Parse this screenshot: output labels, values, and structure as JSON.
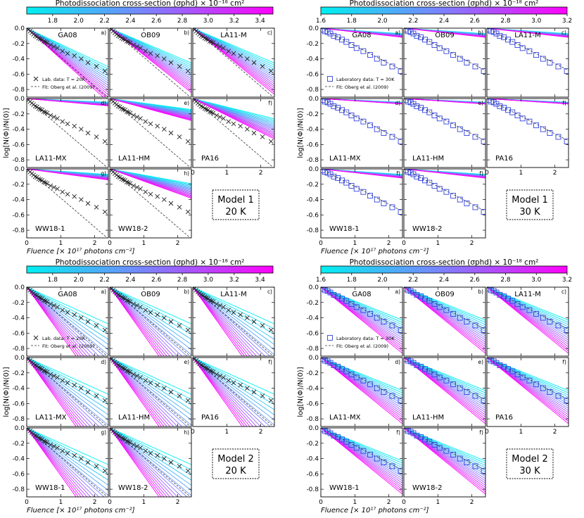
{
  "figure": {
    "colorbar_label": "Photodissociation cross-section (σphd) × 10⁻¹⁸ cm²",
    "xlabel": "Fluence [× 10¹⁷ photons cm⁻²]",
    "ylabel": "log[N(Φ)/N(0)]",
    "legend_fit": "Fit: Oberg et al. (2009)",
    "legend_lab_20": "Lab. data: T = 20K",
    "legend_lab_30": "Laboratory data: T = 30K",
    "colors": {
      "low": "#00f0f0",
      "mid": "#7f7fff",
      "high": "#ff00ff",
      "data20": "#222222",
      "data30": "#3344dd"
    }
  },
  "chart_data": [
    {
      "type": "line",
      "title": "Model 1 20 K",
      "box": [
        "Model 1",
        "20 K"
      ],
      "temperature": 20,
      "model": 1,
      "sigma_range": [
        1.6,
        3.5
      ],
      "colorbar_ticks": [
        "1.8",
        "2.0",
        "2.2",
        "2.4",
        "2.6",
        "2.8",
        "3.0",
        "3.2",
        "3.4"
      ],
      "colorbar_tick_values": [
        1.8,
        2.0,
        2.2,
        2.4,
        2.6,
        2.8,
        3.0,
        3.2,
        3.4
      ],
      "xlim": [
        0,
        2.4
      ],
      "ylim": [
        -0.9,
        0.0
      ],
      "xticks": [
        "0",
        "1",
        "2"
      ],
      "xtick_values": [
        0,
        1,
        2
      ],
      "yticks": [
        "0.0",
        "-0.2",
        "-0.4",
        "-0.6",
        "-0.8"
      ],
      "ytick_values": [
        0,
        -0.2,
        -0.4,
        -0.6,
        -0.8
      ],
      "fit_slope": -0.38,
      "panels": [
        {
          "name": "GA08",
          "letter": "a)",
          "slope_lo": -0.21,
          "slope_hi": -0.4
        },
        {
          "name": "OB09",
          "letter": "b)",
          "slope_lo": -0.19,
          "slope_hi": -0.35
        },
        {
          "name": "LA11-M",
          "letter": "c)",
          "slope_lo": -0.19,
          "slope_hi": -0.36
        },
        {
          "name": "LA11-MX",
          "letter": "d)",
          "slope_lo": -0.02,
          "slope_hi": -0.04
        },
        {
          "name": "LA11-HM",
          "letter": "e)",
          "slope_lo": -0.06,
          "slope_hi": -0.12
        },
        {
          "name": "PA16",
          "letter": "f)",
          "slope_lo": -0.11,
          "slope_hi": -0.22
        },
        {
          "name": "WW18-1",
          "letter": "g)",
          "slope_lo": -0.03,
          "slope_hi": -0.06
        },
        {
          "name": "WW18-2",
          "letter": "h)",
          "slope_lo": -0.08,
          "slope_hi": -0.16
        }
      ],
      "lab_data": {
        "x": [
          0.05,
          0.1,
          0.15,
          0.2,
          0.25,
          0.3,
          0.35,
          0.4,
          0.45,
          0.5,
          0.55,
          0.6,
          0.7,
          0.8,
          0.9,
          1.05,
          1.2,
          1.4,
          1.6,
          1.8,
          2.05,
          2.3
        ],
        "y": [
          -0.02,
          -0.04,
          -0.06,
          -0.08,
          -0.1,
          -0.11,
          -0.13,
          -0.14,
          -0.15,
          -0.17,
          -0.18,
          -0.19,
          -0.22,
          -0.24,
          -0.26,
          -0.3,
          -0.33,
          -0.36,
          -0.4,
          -0.45,
          -0.5,
          -0.56
        ]
      }
    },
    {
      "type": "line",
      "title": "Model 1 30 K",
      "box": [
        "Model 1",
        "30 K"
      ],
      "temperature": 30,
      "model": 1,
      "sigma_range": [
        1.6,
        3.2
      ],
      "colorbar_ticks": [
        "1.6",
        "1.8",
        "2.0",
        "2.2",
        "2.4",
        "2.6",
        "2.8",
        "3.0",
        "3.2"
      ],
      "colorbar_tick_values": [
        1.6,
        1.8,
        2.0,
        2.2,
        2.4,
        2.6,
        2.8,
        3.0,
        3.2
      ],
      "xlim": [
        0,
        2.4
      ],
      "ylim": [
        -0.9,
        0.0
      ],
      "xticks": [
        "0",
        "1",
        "2"
      ],
      "xtick_values": [
        0,
        1,
        2
      ],
      "yticks": [
        "0.0",
        "-0.2",
        "-0.4",
        "-0.6",
        "-0.8"
      ],
      "ytick_values": [
        0,
        -0.2,
        -0.4,
        -0.6,
        -0.8
      ],
      "fit_slope": -0.23,
      "panels": [
        {
          "name": "GA08",
          "letter": "a)",
          "slope_lo": -0.03,
          "slope_hi": -0.05
        },
        {
          "name": "OB09",
          "letter": "b)",
          "slope_lo": -0.03,
          "slope_hi": -0.05
        },
        {
          "name": "LA11-M",
          "letter": "c)",
          "slope_lo": -0.03,
          "slope_hi": -0.05
        },
        {
          "name": "LA11-MX",
          "letter": "d)",
          "slope_lo": -0.02,
          "slope_hi": -0.03
        },
        {
          "name": "LA11-HM",
          "letter": "e)",
          "slope_lo": -0.02,
          "slope_hi": -0.03
        },
        {
          "name": "PA16",
          "letter": "f)",
          "slope_lo": -0.02,
          "slope_hi": -0.03
        },
        {
          "name": "WW18-1",
          "letter": "f)",
          "slope_lo": -0.03,
          "slope_hi": -0.05
        },
        {
          "name": "WW18-2",
          "letter": "f)",
          "slope_lo": -0.03,
          "slope_hi": -0.05
        }
      ],
      "lab_data": {
        "x": [
          0.05,
          0.12,
          0.2,
          0.28,
          0.38,
          0.5,
          0.62,
          0.75,
          0.9,
          1.05,
          1.25,
          1.45,
          1.65,
          1.85,
          2.1,
          2.35
        ],
        "y": [
          -0.02,
          -0.04,
          -0.05,
          -0.07,
          -0.1,
          -0.12,
          -0.15,
          -0.18,
          -0.22,
          -0.26,
          -0.3,
          -0.35,
          -0.4,
          -0.45,
          -0.5,
          -0.56
        ]
      }
    },
    {
      "type": "line",
      "title": "Model 2 20 K",
      "box": [
        "Model 2",
        "20 K"
      ],
      "temperature": 20,
      "model": 2,
      "sigma_range": [
        1.6,
        3.5
      ],
      "colorbar_ticks": [
        "1.8",
        "2.0",
        "2.2",
        "2.4",
        "2.6",
        "2.8",
        "3.0",
        "3.2",
        "3.4"
      ],
      "colorbar_tick_values": [
        1.8,
        2.0,
        2.2,
        2.4,
        2.6,
        2.8,
        3.0,
        3.2,
        3.4
      ],
      "xlim": [
        0,
        2.4
      ],
      "ylim": [
        -0.9,
        0.0
      ],
      "xticks": [
        "0",
        "1",
        "2"
      ],
      "xtick_values": [
        0,
        1,
        2
      ],
      "yticks": [
        "0.0",
        "-0.2",
        "-0.4",
        "-0.6",
        "-0.8"
      ],
      "ytick_values": [
        0,
        -0.2,
        -0.4,
        -0.6,
        -0.8
      ],
      "fit_slope": -0.38,
      "panels": [
        {
          "name": "GA08",
          "letter": "a)",
          "slope_lo": -0.2,
          "slope_hi": -0.62
        },
        {
          "name": "OB09",
          "letter": "b)",
          "slope_lo": -0.2,
          "slope_hi": -0.62
        },
        {
          "name": "LA11-M",
          "letter": "c)",
          "slope_lo": -0.2,
          "slope_hi": -0.62
        },
        {
          "name": "LA11-MX",
          "letter": "d)",
          "slope_lo": -0.2,
          "slope_hi": -0.62
        },
        {
          "name": "LA11-HM",
          "letter": "e)",
          "slope_lo": -0.2,
          "slope_hi": -0.62
        },
        {
          "name": "PA16",
          "letter": "f)",
          "slope_lo": -0.2,
          "slope_hi": -0.62
        },
        {
          "name": "WW18-1",
          "letter": "g)",
          "slope_lo": -0.2,
          "slope_hi": -0.62
        },
        {
          "name": "WW18-2",
          "letter": "h)",
          "slope_lo": -0.2,
          "slope_hi": -0.62
        }
      ],
      "lab_data": {
        "x": [
          0.05,
          0.1,
          0.15,
          0.2,
          0.25,
          0.3,
          0.35,
          0.4,
          0.45,
          0.5,
          0.55,
          0.6,
          0.7,
          0.8,
          0.9,
          1.05,
          1.2,
          1.4,
          1.6,
          1.8,
          2.05,
          2.3
        ],
        "y": [
          -0.02,
          -0.04,
          -0.06,
          -0.08,
          -0.1,
          -0.11,
          -0.13,
          -0.14,
          -0.15,
          -0.17,
          -0.18,
          -0.19,
          -0.22,
          -0.24,
          -0.26,
          -0.3,
          -0.33,
          -0.36,
          -0.4,
          -0.45,
          -0.5,
          -0.56
        ]
      }
    },
    {
      "type": "line",
      "title": "Model 2 30 K",
      "box": [
        "Model 2",
        "30 K"
      ],
      "temperature": 30,
      "model": 2,
      "sigma_range": [
        1.6,
        3.2
      ],
      "colorbar_ticks": [
        "1.6",
        "1.8",
        "2.0",
        "2.2",
        "2.4",
        "2.6",
        "2.8",
        "3.0",
        "3.2"
      ],
      "colorbar_tick_values": [
        1.6,
        1.8,
        2.0,
        2.2,
        2.4,
        2.6,
        2.8,
        3.0,
        3.2
      ],
      "xlim": [
        0,
        2.4
      ],
      "ylim": [
        -0.9,
        0.0
      ],
      "xticks": [
        "0",
        "1",
        "2"
      ],
      "xtick_values": [
        0,
        1,
        2
      ],
      "yticks": [
        "0.0",
        "-0.2",
        "-0.4",
        "-0.6",
        "-0.8"
      ],
      "ytick_values": [
        0,
        -0.2,
        -0.4,
        -0.6,
        -0.8
      ],
      "fit_slope": -0.23,
      "panels": [
        {
          "name": "GA08",
          "letter": "a)",
          "slope_lo": -0.18,
          "slope_hi": -0.36
        },
        {
          "name": "OB09",
          "letter": "b)",
          "slope_lo": -0.18,
          "slope_hi": -0.36
        },
        {
          "name": "LA11-M",
          "letter": "c)",
          "slope_lo": -0.18,
          "slope_hi": -0.36
        },
        {
          "name": "LA11-MX",
          "letter": "d)",
          "slope_lo": -0.18,
          "slope_hi": -0.36
        },
        {
          "name": "LA11-HM",
          "letter": "e)",
          "slope_lo": -0.18,
          "slope_hi": -0.36
        },
        {
          "name": "PA16",
          "letter": "f)",
          "slope_lo": -0.18,
          "slope_hi": -0.36
        },
        {
          "name": "WW18-1",
          "letter": "f)",
          "slope_lo": -0.18,
          "slope_hi": -0.36
        },
        {
          "name": "WW18-2",
          "letter": "f)",
          "slope_lo": -0.18,
          "slope_hi": -0.36
        }
      ],
      "lab_data": {
        "x": [
          0.05,
          0.12,
          0.2,
          0.28,
          0.38,
          0.5,
          0.62,
          0.75,
          0.9,
          1.05,
          1.25,
          1.45,
          1.65,
          1.85,
          2.1,
          2.35
        ],
        "y": [
          -0.02,
          -0.04,
          -0.05,
          -0.07,
          -0.1,
          -0.12,
          -0.15,
          -0.18,
          -0.22,
          -0.26,
          -0.3,
          -0.35,
          -0.4,
          -0.45,
          -0.5,
          -0.56
        ]
      }
    }
  ]
}
